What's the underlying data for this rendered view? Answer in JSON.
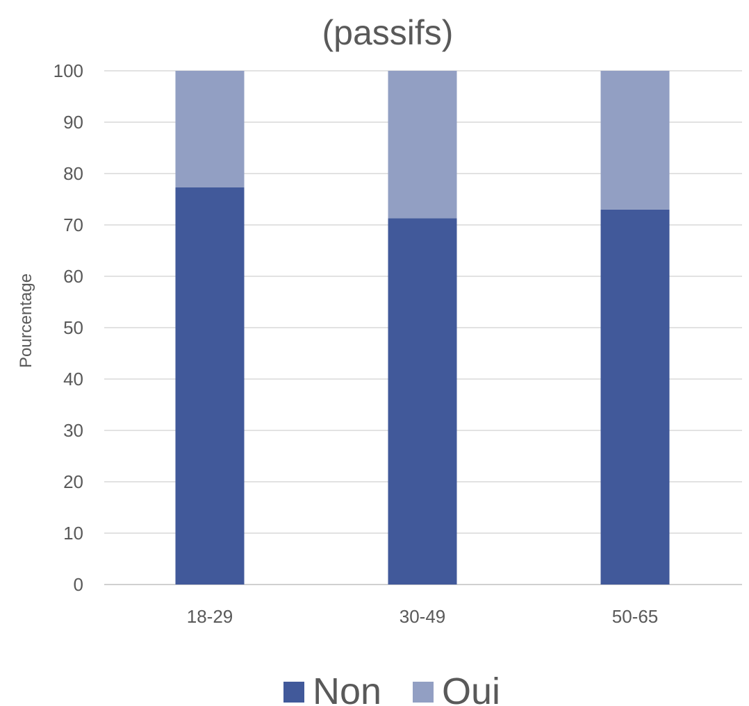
{
  "chart_data": {
    "type": "bar",
    "stacked": true,
    "title": "(passifs)",
    "xlabel": "",
    "ylabel": "Pourcentage",
    "ylim": [
      0,
      100
    ],
    "yticks": [
      0,
      10,
      20,
      30,
      40,
      50,
      60,
      70,
      80,
      90,
      100
    ],
    "categories": [
      "18-29",
      "30-49",
      "50-65"
    ],
    "series": [
      {
        "name": "Non",
        "values": [
          77.3,
          71.3,
          73.0
        ],
        "color": "#41599a"
      },
      {
        "name": "Oui",
        "values": [
          22.7,
          28.7,
          27.0
        ],
        "color": "#929fc3"
      }
    ],
    "grid": true,
    "legend_position": "bottom"
  }
}
